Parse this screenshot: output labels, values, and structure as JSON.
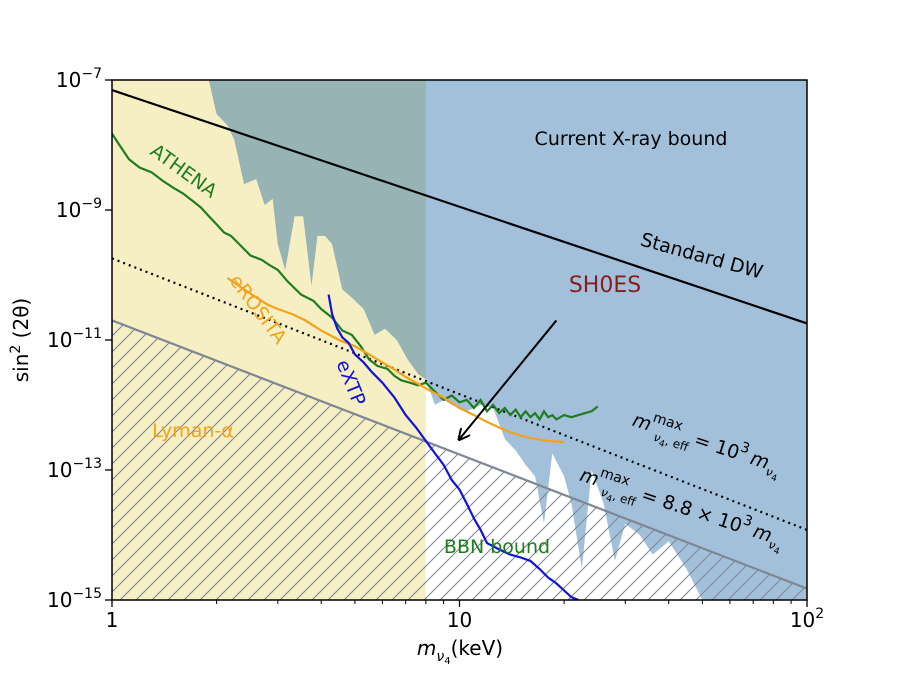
{
  "chart_data": {
    "type": "line",
    "xscale": "log",
    "yscale": "log",
    "xlim": [
      1,
      100
    ],
    "ylim": [
      1e-15,
      1e-07
    ],
    "x_ticks": [
      {
        "value": 1,
        "base": "1",
        "exp": ""
      },
      {
        "value": 10,
        "base": "10",
        "exp": ""
      },
      {
        "value": 100,
        "base": "10",
        "exp": "2"
      }
    ],
    "y_ticks": [
      {
        "value": 1e-07,
        "base": "10",
        "exp": "−7"
      },
      {
        "value": 1e-09,
        "base": "10",
        "exp": "−9"
      },
      {
        "value": 1e-11,
        "base": "10",
        "exp": "−11"
      },
      {
        "value": 1e-13,
        "base": "10",
        "exp": "−13"
      },
      {
        "value": 1e-15,
        "base": "10",
        "exp": "−15"
      }
    ],
    "xlabel": {
      "main": "m",
      "sub": "ν",
      "subsub": "4",
      "unit": "(keV)"
    },
    "ylabel": {
      "pre": "sin",
      "sup": "2",
      "post": " (2θ)"
    },
    "colors": {
      "lyman": "#f6efc4",
      "xray": "#a3c0db",
      "overlap": "#97b3b4",
      "athena": "#1e7d1e",
      "erosita": "#f5a21b",
      "extp": "#1212dd",
      "standard_dw": "#000000",
      "bbn": "#7e8794",
      "shoes": "#8b1a1a"
    },
    "regions": {
      "lyman_alpha_max_x": 8.0,
      "xray_bound_upper": [
        [
          1.0,
          1e-07
        ],
        [
          1.9,
          1e-07
        ],
        [
          2.0,
          3e-08
        ],
        [
          2.15,
          2e-08
        ],
        [
          2.25,
          1.2e-08
        ],
        [
          2.4,
          2.5e-09
        ],
        [
          2.6,
          3e-09
        ],
        [
          2.75,
          1.2e-09
        ],
        [
          2.9,
          1.5e-09
        ],
        [
          3.0,
          3e-10
        ],
        [
          3.15,
          1.2e-10
        ],
        [
          3.35,
          8e-10
        ],
        [
          3.55,
          8e-10
        ],
        [
          3.75,
          7e-11
        ],
        [
          3.9,
          4e-10
        ],
        [
          4.1,
          4e-10
        ],
        [
          4.3,
          3e-10
        ],
        [
          4.6,
          6e-11
        ],
        [
          4.9,
          4.5e-11
        ],
        [
          5.3,
          3e-11
        ],
        [
          5.7,
          1.2e-11
        ],
        [
          6.1,
          1.5e-11
        ],
        [
          6.6,
          1e-11
        ],
        [
          7.1,
          5e-12
        ],
        [
          7.6,
          3e-12
        ],
        [
          8.0,
          2.5e-12
        ],
        [
          8.5,
          1e-12
        ],
        [
          9.0,
          1.2e-12
        ],
        [
          9.5,
          1e-12
        ],
        [
          10.5,
          8e-13
        ],
        [
          11.5,
          1e-12
        ],
        [
          12.5,
          9e-13
        ],
        [
          13.5,
          3e-13
        ],
        [
          14.5,
          2e-13
        ],
        [
          15.5,
          1.2e-13
        ],
        [
          16.5,
          8e-14
        ],
        [
          17.5,
          1.5e-14
        ],
        [
          18.5,
          1.8e-13
        ],
        [
          20.0,
          8e-14
        ],
        [
          21.0,
          3e-14
        ],
        [
          22.5,
          3e-15
        ],
        [
          24.0,
          1e-13
        ],
        [
          26.0,
          3e-14
        ],
        [
          28.0,
          4e-15
        ],
        [
          30.0,
          1.5e-14
        ],
        [
          33.0,
          1e-14
        ],
        [
          36.0,
          5e-15
        ],
        [
          40.0,
          8e-15
        ],
        [
          45.0,
          3e-15
        ],
        [
          50.0,
          1e-15
        ],
        [
          100.0,
          1e-15
        ]
      ]
    },
    "series": [
      {
        "name": "ATHENA",
        "points": [
          [
            1.0,
            1.5e-08
          ],
          [
            1.05,
            1e-08
          ],
          [
            1.12,
            6e-09
          ],
          [
            1.2,
            4.5e-09
          ],
          [
            1.3,
            3.8e-09
          ],
          [
            1.4,
            2.8e-09
          ],
          [
            1.5,
            2.2e-09
          ],
          [
            1.6,
            1.8e-09
          ],
          [
            1.7,
            1.4e-09
          ],
          [
            1.8,
            1.1e-09
          ],
          [
            1.9,
            8e-10
          ],
          [
            2.0,
            6e-10
          ],
          [
            2.1,
            4.5e-10
          ],
          [
            2.2,
            4e-10
          ],
          [
            2.35,
            2.8e-10
          ],
          [
            2.5,
            2e-10
          ],
          [
            2.7,
            1.7e-10
          ],
          [
            2.85,
            1.4e-10
          ],
          [
            3.0,
            1.2e-10
          ],
          [
            3.2,
            8e-11
          ],
          [
            3.5,
            5e-11
          ],
          [
            3.8,
            4e-11
          ],
          [
            4.0,
            3e-11
          ],
          [
            4.3,
            2.2e-11
          ],
          [
            4.6,
            1.4e-11
          ],
          [
            4.9,
            1.2e-11
          ],
          [
            5.2,
            8e-12
          ],
          [
            5.5,
            5e-12
          ],
          [
            5.8,
            4e-12
          ],
          [
            6.2,
            3.6e-12
          ],
          [
            6.5,
            2.8e-12
          ],
          [
            6.8,
            2.4e-12
          ],
          [
            7.2,
            2.2e-12
          ],
          [
            7.6,
            2e-12
          ],
          [
            8.0,
            2.2e-12
          ],
          [
            8.5,
            1.6e-12
          ],
          [
            9.0,
            1.2e-12
          ],
          [
            9.5,
            1.4e-12
          ],
          [
            10.0,
            1.1e-12
          ],
          [
            10.5,
            1.2e-12
          ],
          [
            11.0,
            9e-13
          ],
          [
            11.5,
            1.2e-12
          ],
          [
            12.0,
            8e-13
          ],
          [
            12.5,
            1e-12
          ],
          [
            13.0,
            7.5e-13
          ],
          [
            13.5,
            9e-13
          ],
          [
            14.0,
            7e-13
          ],
          [
            14.5,
            8.5e-13
          ],
          [
            15.0,
            6.5e-13
          ],
          [
            15.5,
            8e-13
          ],
          [
            16.0,
            6.5e-13
          ],
          [
            16.5,
            7.5e-13
          ],
          [
            17.0,
            6e-13
          ],
          [
            17.5,
            8e-13
          ],
          [
            18.0,
            6.5e-13
          ],
          [
            18.5,
            7e-13
          ],
          [
            19.0,
            6e-13
          ],
          [
            20.0,
            7e-13
          ],
          [
            21.0,
            6.5e-13
          ],
          [
            22.0,
            7e-13
          ],
          [
            23.0,
            7.5e-13
          ],
          [
            24.0,
            8e-13
          ],
          [
            25.0,
            9.5e-13
          ]
        ],
        "label": "ATHENA"
      },
      {
        "name": "eROSITA",
        "points": [
          [
            2.15,
            9e-11
          ],
          [
            2.4,
            6e-11
          ],
          [
            2.6,
            4.5e-11
          ],
          [
            2.8,
            3.5e-11
          ],
          [
            3.0,
            3e-11
          ],
          [
            3.3,
            2.5e-11
          ],
          [
            3.6,
            2e-11
          ],
          [
            4.0,
            1.4e-11
          ],
          [
            4.5,
            1e-11
          ],
          [
            5.0,
            8e-12
          ],
          [
            5.5,
            6e-12
          ],
          [
            6.0,
            4.5e-12
          ],
          [
            6.5,
            3.5e-12
          ],
          [
            7.0,
            2.7e-12
          ],
          [
            7.5,
            2.2e-12
          ],
          [
            8.0,
            1.8e-12
          ],
          [
            9.0,
            1.3e-12
          ],
          [
            10.0,
            9e-13
          ],
          [
            11.0,
            7e-13
          ],
          [
            12.0,
            5.5e-13
          ],
          [
            13.0,
            4.5e-13
          ],
          [
            14.0,
            3.8e-13
          ],
          [
            15.0,
            3.4e-13
          ],
          [
            16.0,
            3.1e-13
          ],
          [
            18.0,
            2.8e-13
          ],
          [
            20.0,
            2.7e-13
          ]
        ],
        "label": "eROSITA"
      },
      {
        "name": "eXTP",
        "points": [
          [
            4.2,
            5e-11
          ],
          [
            4.3,
            2.5e-11
          ],
          [
            4.45,
            1.5e-11
          ],
          [
            4.6,
            1.1e-11
          ],
          [
            4.8,
            9e-12
          ],
          [
            5.0,
            6e-12
          ],
          [
            5.3,
            4.5e-12
          ],
          [
            5.6,
            3.2e-12
          ],
          [
            6.0,
            2.2e-12
          ],
          [
            6.5,
            1.3e-12
          ],
          [
            7.0,
            7e-13
          ],
          [
            7.5,
            4.5e-13
          ],
          [
            8.0,
            2.8e-13
          ],
          [
            8.5,
            1.8e-13
          ],
          [
            9.0,
            1.2e-13
          ],
          [
            9.5,
            7e-14
          ],
          [
            10.0,
            5e-14
          ],
          [
            10.5,
            3e-14
          ],
          [
            11.0,
            1.8e-14
          ],
          [
            11.5,
            1.2e-14
          ],
          [
            12.0,
            7.5e-15
          ],
          [
            13.0,
            6e-15
          ],
          [
            14.0,
            5e-15
          ],
          [
            15.0,
            4.5e-15
          ],
          [
            16.0,
            4e-15
          ],
          [
            17.0,
            3e-15
          ],
          [
            18.0,
            2.2e-15
          ],
          [
            19.0,
            1.8e-15
          ],
          [
            20.0,
            1.4e-15
          ],
          [
            21.0,
            1.1e-15
          ],
          [
            22.0,
            1e-15
          ]
        ],
        "label": "eXTP"
      },
      {
        "name": "Standard DW",
        "points": [
          [
            1.0,
            7e-08
          ],
          [
            100.0,
            1.8e-11
          ]
        ],
        "label": "Standard DW"
      },
      {
        "name": "m_eff_max = 10^3 m",
        "points": [
          [
            1.0,
            1.8e-10
          ],
          [
            100.0,
            1.2e-14
          ]
        ],
        "dashed": true
      },
      {
        "name": "BBN bound",
        "points": [
          [
            1.0,
            2e-11
          ],
          [
            100.0,
            1.5e-15
          ]
        ],
        "label": "BBN bound"
      }
    ],
    "annotations": {
      "current_xray": "Current X-ray bound",
      "standard_dw": "Standard DW",
      "shoes": "SH0ES",
      "athena": "ATHENA",
      "erosita": "eROSITA",
      "extp": "eXTP",
      "lyman": "Lyman-α",
      "bbn": "BBN bound",
      "meff1": {
        "m": "m",
        "sup": "max",
        "sub": "ν",
        "subsub": "4",
        "eff": ", eff",
        "rhs": "= 10",
        "rhs_exp": "3",
        "rhs_m": "m",
        "rhs_sub": "ν",
        "rhs_subsub": "4"
      },
      "meff2": {
        "m": "m",
        "sup": "max",
        "sub": "ν",
        "subsub": "4",
        "eff": ", eff",
        "rhs": "= 8.8 × 10",
        "rhs_exp": "3",
        "rhs_m": "m",
        "rhs_sub": "ν",
        "rhs_subsub": "4"
      }
    },
    "arrow": {
      "from": [
        19.0,
        2e-11
      ],
      "to": [
        10.0,
        3e-13
      ]
    },
    "grid": false,
    "legend": "none"
  }
}
